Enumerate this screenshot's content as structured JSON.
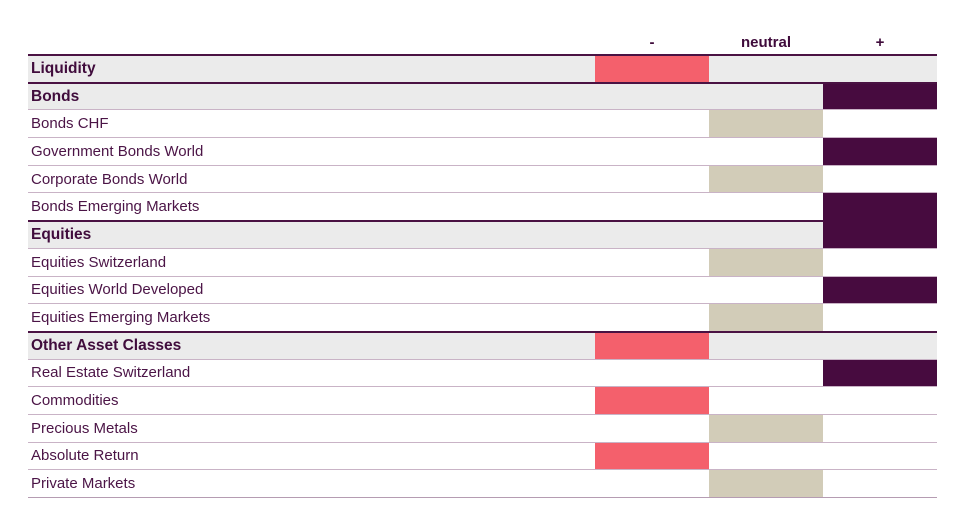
{
  "chart_data": {
    "type": "table",
    "description": "Tactical asset allocation positioning chart: each asset class row shows one signal bar in the minus, neutral or plus column",
    "columns": [
      {
        "key": "minus",
        "label": "-"
      },
      {
        "key": "neutral",
        "label": "neutral"
      },
      {
        "key": "plus",
        "label": "+"
      }
    ],
    "rows": [
      {
        "label": "Liquidity",
        "kind": "section",
        "signal": "minus"
      },
      {
        "label": "Bonds",
        "kind": "section",
        "signal": "plus"
      },
      {
        "label": "Bonds CHF",
        "kind": "item",
        "signal": "neutral"
      },
      {
        "label": "Government Bonds World",
        "kind": "item",
        "signal": "plus"
      },
      {
        "label": "Corporate Bonds World",
        "kind": "item",
        "signal": "neutral"
      },
      {
        "label": "Bonds Emerging Markets",
        "kind": "item",
        "signal": "plus"
      },
      {
        "label": "Equities",
        "kind": "section",
        "signal": "plus"
      },
      {
        "label": "Equities Switzerland",
        "kind": "item",
        "signal": "neutral"
      },
      {
        "label": "Equities World Developed",
        "kind": "item",
        "signal": "plus"
      },
      {
        "label": "Equities Emerging Markets",
        "kind": "item",
        "signal": "neutral"
      },
      {
        "label": "Other Asset Classes",
        "kind": "section",
        "signal": "minus"
      },
      {
        "label": "Real Estate Switzerland",
        "kind": "item",
        "signal": "plus"
      },
      {
        "label": "Commodities",
        "kind": "item",
        "signal": "minus"
      },
      {
        "label": "Precious Metals",
        "kind": "item",
        "signal": "neutral"
      },
      {
        "label": "Absolute Return",
        "kind": "item",
        "signal": "minus"
      },
      {
        "label": "Private Markets",
        "kind": "item",
        "signal": "neutral"
      }
    ],
    "colors": {
      "minus_bar": "#f4606c",
      "neutral_bar": "#d2ccb8",
      "plus_bar": "#470b3f",
      "section_row_background": "#ebebeb",
      "row_separator": "#c9b3c6",
      "section_top_rule": "#4a1243",
      "text": "#4b1446"
    }
  }
}
